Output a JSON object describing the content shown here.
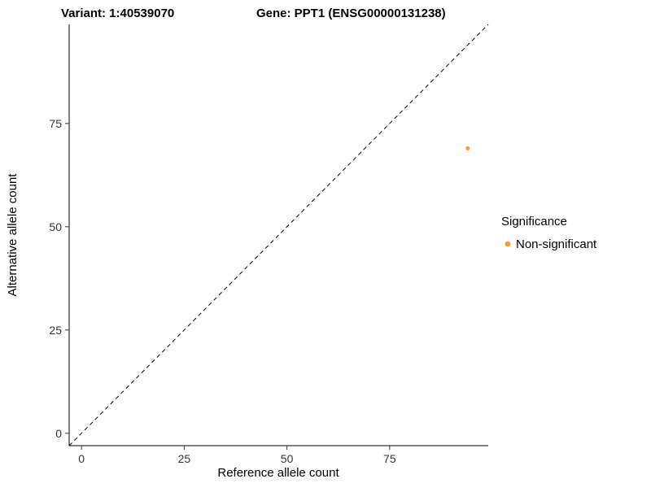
{
  "header": {
    "variant_title": "Variant: 1:40539070",
    "gene_title": "Gene: PPT1 (ENSG00000131238)"
  },
  "chart_data": {
    "type": "scatter",
    "title": "Variant: 1:40539070    Gene: PPT1 (ENSG00000131238)",
    "xlabel": "Reference allele count",
    "ylabel": "Alternative allele count",
    "xlim": [
      -3,
      99
    ],
    "ylim": [
      -3,
      99
    ],
    "xticks": [
      0,
      25,
      50,
      75
    ],
    "yticks": [
      0,
      25,
      50,
      75
    ],
    "grid": false,
    "background_color": "#FFFFFF",
    "identity_line": {
      "style": "dashed",
      "color": "#000000",
      "x1": -3,
      "y1": -3,
      "x2": 99,
      "y2": 99
    },
    "series": [
      {
        "name": "Non-significant",
        "color": "#F9A032",
        "point_radius": 2.6,
        "points": [
          {
            "x": 94,
            "y": 69
          }
        ]
      }
    ],
    "legend": {
      "title": "Significance",
      "position": "right",
      "entries": [
        {
          "label": "Non-significant",
          "color": "#F9A032"
        }
      ]
    }
  }
}
